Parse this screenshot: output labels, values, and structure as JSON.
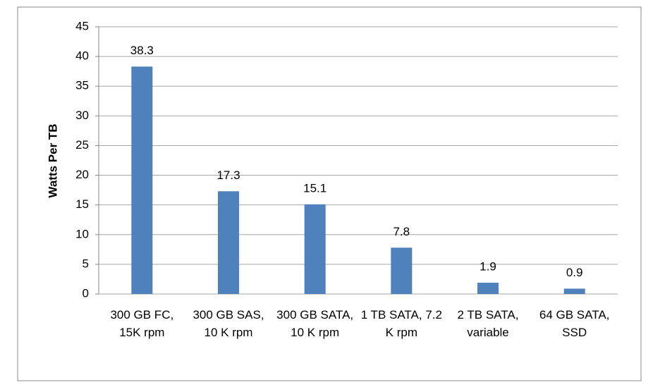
{
  "chart_data": {
    "type": "bar",
    "y_axis_label": "Watts Per TB",
    "categories": [
      "300 GB FC, 15K rpm",
      "300 GB SAS, 10 K rpm",
      "300 GB SATA, 10 K rpm",
      "1 TB SATA, 7.2 K rpm",
      "2 TB SATA, variable",
      "64 GB SATA, SSD"
    ],
    "values": [
      38.3,
      17.3,
      15.1,
      7.8,
      1.9,
      0.9
    ],
    "color": "#4f81bd",
    "ylim": [
      0,
      45
    ],
    "yticks": [
      0,
      5,
      10,
      15,
      20,
      25,
      30,
      35,
      40,
      45
    ],
    "grid": true,
    "data_labels": true
  }
}
